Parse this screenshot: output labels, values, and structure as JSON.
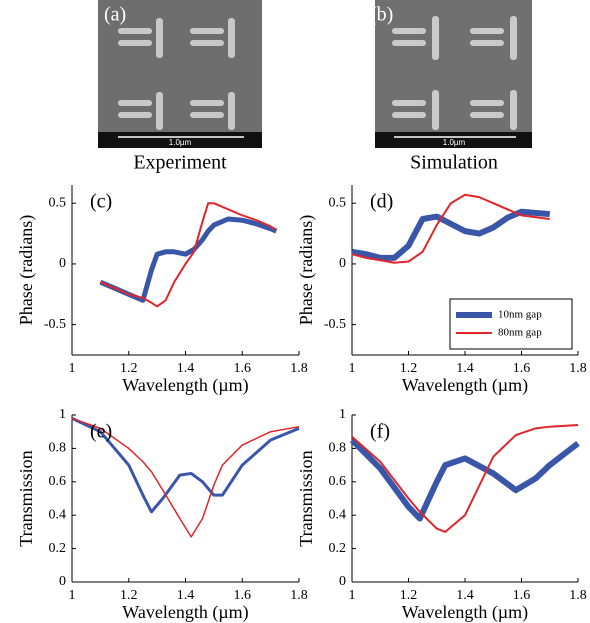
{
  "images": [
    {
      "label": "(a)",
      "scale_bar": "1.0µm",
      "caption": "Experiment"
    },
    {
      "label": "(b)",
      "scale_bar": "1.0µm",
      "caption": "Simulation"
    }
  ],
  "chart_data": [
    {
      "type": "line",
      "title": "(c)",
      "x_label": "Wavelength (µm)",
      "y_label": "Phase (radians)",
      "x": [
        1.1,
        1.15,
        1.2,
        1.25,
        1.28,
        1.3,
        1.33,
        1.36,
        1.4,
        1.43,
        1.46,
        1.48,
        1.5,
        1.55,
        1.6,
        1.65,
        1.7,
        1.72
      ],
      "series": [
        {
          "color": "#3a56a8",
          "width": 5,
          "values": [
            -0.15,
            -0.2,
            -0.25,
            -0.3,
            -0.05,
            0.08,
            0.1,
            0.1,
            0.08,
            0.12,
            0.2,
            0.27,
            0.32,
            0.37,
            0.36,
            0.33,
            0.29,
            0.27
          ]
        },
        {
          "color": "#e0262b",
          "width": 2,
          "values": [
            -0.15,
            -0.2,
            -0.25,
            -0.28,
            -0.32,
            -0.35,
            -0.3,
            -0.15,
            0.0,
            0.1,
            0.35,
            0.5,
            0.5,
            0.45,
            0.4,
            0.36,
            0.31,
            0.28
          ]
        }
      ],
      "xlim": [
        1,
        1.8
      ],
      "xticks": [
        1,
        1.2,
        1.4,
        1.6,
        1.8
      ],
      "ylim": [
        -0.75,
        0.65
      ],
      "yticks": [
        -0.5,
        0,
        0.5
      ]
    },
    {
      "type": "line",
      "title": "(d)",
      "x_label": "Wavelength (µm)",
      "y_label": "Phase (radians)",
      "x": [
        1.0,
        1.05,
        1.1,
        1.15,
        1.2,
        1.25,
        1.3,
        1.35,
        1.4,
        1.45,
        1.5,
        1.55,
        1.6,
        1.7
      ],
      "series": [
        {
          "name": "10nm gap",
          "color": "#3a56a8",
          "width": 6,
          "values": [
            0.1,
            0.08,
            0.05,
            0.05,
            0.15,
            0.37,
            0.39,
            0.33,
            0.27,
            0.25,
            0.3,
            0.38,
            0.43,
            0.41
          ]
        },
        {
          "name": "80nm gap",
          "color": "#e0262b",
          "width": 2,
          "values": [
            0.08,
            0.05,
            0.03,
            0.01,
            0.02,
            0.1,
            0.32,
            0.5,
            0.57,
            0.55,
            0.5,
            0.45,
            0.4,
            0.37
          ]
        }
      ],
      "legend": "lower right",
      "xlim": [
        1,
        1.8
      ],
      "xticks": [
        1,
        1.2,
        1.4,
        1.6,
        1.8
      ],
      "ylim": [
        -0.75,
        0.65
      ],
      "yticks": [
        -0.5,
        0,
        0.5
      ]
    },
    {
      "type": "line",
      "title": "(e)",
      "x_label": "Wavelength (µm)",
      "y_label": "Transmission",
      "x": [
        1.0,
        1.1,
        1.2,
        1.25,
        1.28,
        1.32,
        1.38,
        1.42,
        1.46,
        1.5,
        1.53,
        1.6,
        1.7,
        1.8
      ],
      "series": [
        {
          "color": "#3a56a8",
          "width": 3,
          "values": [
            0.98,
            0.9,
            0.7,
            0.52,
            0.42,
            0.5,
            0.64,
            0.65,
            0.6,
            0.52,
            0.52,
            0.7,
            0.85,
            0.92
          ]
        },
        {
          "color": "#e0262b",
          "width": 1.5,
          "values": [
            0.98,
            0.92,
            0.8,
            0.72,
            0.66,
            0.55,
            0.38,
            0.27,
            0.38,
            0.58,
            0.7,
            0.82,
            0.9,
            0.93
          ]
        }
      ],
      "xlim": [
        1,
        1.8
      ],
      "xticks": [
        1,
        1.2,
        1.4,
        1.6,
        1.8
      ],
      "ylim": [
        0,
        1
      ],
      "yticks": [
        0,
        0.2,
        0.4,
        0.6,
        0.8,
        1
      ]
    },
    {
      "type": "line",
      "title": "(f)",
      "x_label": "Wavelength (µm)",
      "y_label": "Transmission",
      "x": [
        1.0,
        1.1,
        1.2,
        1.24,
        1.3,
        1.33,
        1.4,
        1.5,
        1.58,
        1.65,
        1.7,
        1.8
      ],
      "series": [
        {
          "color": "#3a56a8",
          "width": 6,
          "values": [
            0.85,
            0.68,
            0.45,
            0.38,
            0.6,
            0.7,
            0.74,
            0.65,
            0.55,
            0.62,
            0.7,
            0.83
          ]
        },
        {
          "color": "#e0262b",
          "width": 2,
          "values": [
            0.87,
            0.72,
            0.5,
            0.42,
            0.32,
            0.3,
            0.4,
            0.75,
            0.88,
            0.92,
            0.93,
            0.94
          ]
        }
      ],
      "xlim": [
        1,
        1.8
      ],
      "xticks": [
        1,
        1.2,
        1.4,
        1.6,
        1.8
      ],
      "ylim": [
        0,
        1
      ],
      "yticks": [
        0,
        0.2,
        0.4,
        0.6,
        0.8,
        1
      ]
    }
  ]
}
